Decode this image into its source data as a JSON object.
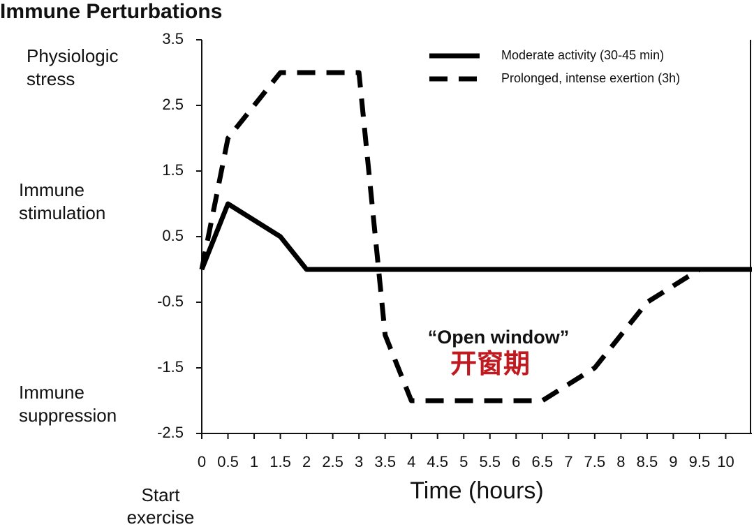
{
  "chart_data": {
    "type": "line",
    "title": "Immune Perturbations",
    "xlabel": "Time (hours)",
    "xlim": [
      0,
      10.5
    ],
    "ylim": [
      -2.5,
      3.5
    ],
    "xticks": [
      0,
      0.5,
      1,
      1.5,
      2,
      2.5,
      3,
      3.5,
      4,
      4.5,
      5,
      5.5,
      6,
      6.5,
      7,
      7.5,
      8,
      8.5,
      9,
      9.5,
      10
    ],
    "yticks": [
      3.5,
      2.5,
      1.5,
      0.5,
      -0.5,
      -1.5,
      -2.5
    ],
    "grid": false,
    "legend": "upper right",
    "series": [
      {
        "name": "Moderate activity (30-45 min)",
        "color": "#000000",
        "dash": "solid",
        "x": [
          0,
          0.5,
          1.5,
          2,
          10.5
        ],
        "values": [
          0,
          1,
          0.5,
          0,
          0
        ]
      },
      {
        "name": "Prolonged, intense exertion (3h)",
        "color": "#000000",
        "dash": "dashed",
        "x": [
          0,
          0.5,
          1.5,
          3,
          3.5,
          4,
          6.5,
          7.5,
          8.5,
          9.5
        ],
        "values": [
          0,
          2,
          3,
          3,
          -1,
          -2,
          -2,
          -1.5,
          -0.5,
          0
        ]
      }
    ],
    "side_labels": [
      [
        "Physiologic",
        "stress"
      ],
      [
        "Immune",
        "stimulation"
      ],
      [
        "Immune",
        "suppression"
      ]
    ],
    "start_label": [
      "Start",
      "exercise"
    ],
    "annotations": [
      {
        "text": "“Open window”",
        "color": "#111111"
      },
      {
        "text": "开窗期",
        "color": "#c0191f"
      }
    ]
  }
}
